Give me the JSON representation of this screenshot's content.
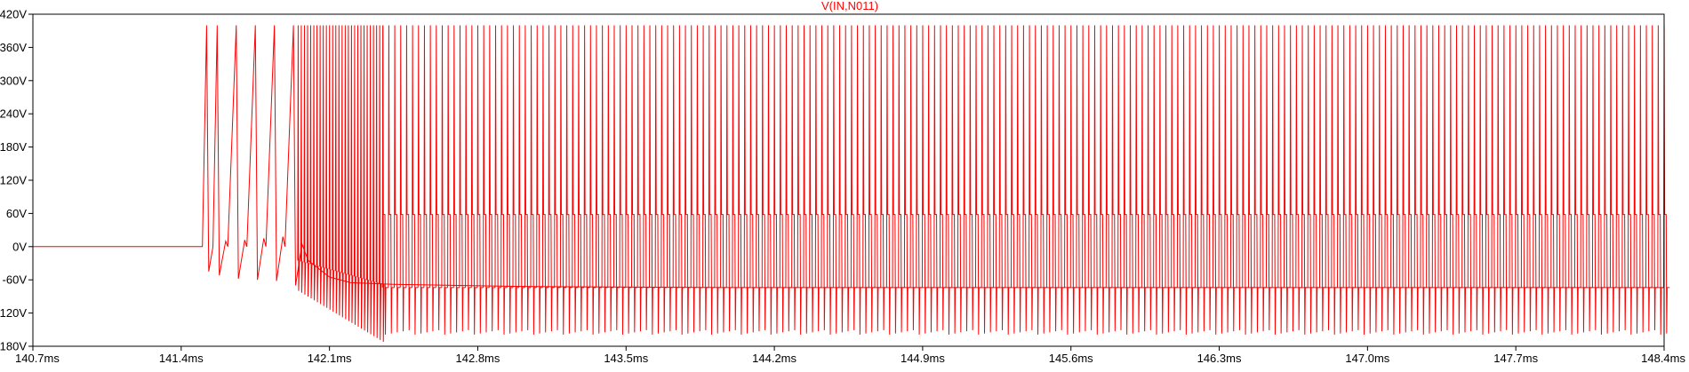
{
  "title": "V(IN,N011)",
  "colors": {
    "trace": "#ff0000",
    "axis": "#000000",
    "background": "#ffffff",
    "grid_tick": "#000000"
  },
  "chart_data": {
    "type": "line",
    "title": "V(IN,N011)",
    "xlabel": "",
    "ylabel": "",
    "xlim": [
      140.7,
      148.4
    ],
    "ylim": [
      -180,
      420
    ],
    "x_unit": "ms",
    "y_unit": "V",
    "grid": false,
    "legend": "none",
    "x_ticks": [
      "140.7ms",
      "141.4ms",
      "142.1ms",
      "142.8ms",
      "143.5ms",
      "144.2ms",
      "144.9ms",
      "145.6ms",
      "146.3ms",
      "147.0ms",
      "147.7ms",
      "148.4ms"
    ],
    "x_tick_values": [
      140.7,
      141.4,
      142.1,
      142.8,
      143.5,
      144.2,
      144.9,
      145.6,
      146.3,
      147.0,
      147.7,
      148.4
    ],
    "y_ticks": [
      "420V",
      "360V",
      "300V",
      "240V",
      "180V",
      "120V",
      "60V",
      "0V",
      "-60V",
      "-120V",
      "-180V"
    ],
    "y_tick_values": [
      420,
      360,
      300,
      240,
      180,
      120,
      60,
      0,
      -60,
      -120,
      -180
    ],
    "series": [
      {
        "name": "V(IN,N011)",
        "points": [
          [
            140.7,
            0
          ],
          [
            141.5,
            0
          ],
          [
            141.52,
            400
          ],
          [
            141.53,
            -45
          ],
          [
            141.55,
            0
          ],
          [
            141.57,
            400
          ],
          [
            141.58,
            -52
          ],
          [
            141.61,
            10
          ],
          [
            141.62,
            0
          ],
          [
            141.66,
            400
          ],
          [
            141.67,
            -58
          ],
          [
            141.7,
            12
          ],
          [
            141.71,
            0
          ],
          [
            141.75,
            400
          ],
          [
            141.76,
            -60
          ],
          [
            141.79,
            15
          ],
          [
            141.8,
            0
          ],
          [
            141.84,
            400
          ],
          [
            141.85,
            -62
          ],
          [
            141.88,
            18
          ],
          [
            141.89,
            0
          ],
          [
            141.93,
            400
          ],
          [
            141.94,
            -70
          ],
          [
            141.97,
            5
          ],
          [
            142.0,
            -25
          ],
          [
            142.05,
            -40
          ],
          [
            142.1,
            -55
          ],
          [
            142.2,
            -65
          ],
          [
            142.4,
            -68
          ],
          [
            143.0,
            -72
          ],
          [
            144.0,
            -74
          ],
          [
            148.4,
            -74
          ]
        ]
      }
    ],
    "steady_state_oscillation": {
      "start_ms": 142.35,
      "end_ms": 148.4,
      "period_ms": 0.028,
      "peak_high_V": 400,
      "plateau_V": 58,
      "plateau_low_V": -74,
      "peak_low_V": -155
    },
    "transient_train": {
      "start_ms": 141.95,
      "end_ms": 142.35,
      "peak_high_V": 400,
      "baseline_start_V": -25,
      "baseline_end_V": -68,
      "trough_start_V": -80,
      "trough_end_V": -172
    }
  }
}
